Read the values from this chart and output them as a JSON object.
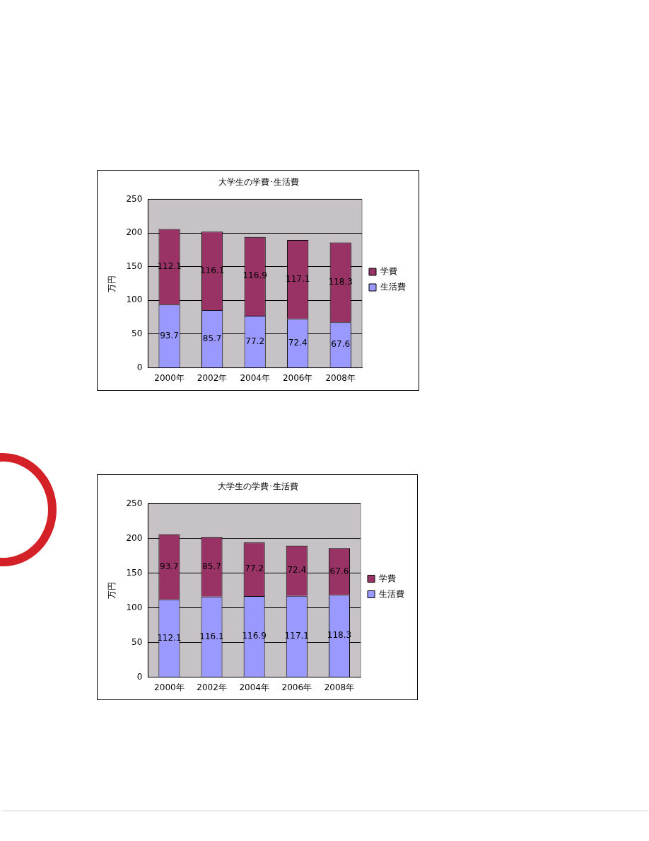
{
  "chart_data": [
    {
      "type": "bar",
      "title": "大学生の学費･生活費",
      "ylabel": "万円",
      "categories": [
        "2000年",
        "2002年",
        "2004年",
        "2006年",
        "2008年"
      ],
      "stacked": true,
      "series": [
        {
          "name": "生活費",
          "color": "#9999ff",
          "values": [
            93.7,
            85.7,
            77.2,
            72.4,
            67.6
          ],
          "value_labels": [
            "93.7",
            "85.7",
            "77.2",
            "72.4",
            "67.6"
          ]
        },
        {
          "name": "学費",
          "color": "#993366",
          "values": [
            112.1,
            116.1,
            116.9,
            117.1,
            118.3
          ],
          "value_labels": [
            "112.1",
            "116.1",
            "116.9",
            "117.1",
            "118.3"
          ]
        }
      ],
      "ylim": [
        0,
        250
      ],
      "yticks": [
        0,
        50,
        100,
        150,
        200,
        250
      ],
      "grid": "y",
      "legend": "right"
    },
    {
      "type": "bar",
      "title": "大学生の学費･生活費",
      "ylabel": "万円",
      "categories": [
        "2000年",
        "2002年",
        "2004年",
        "2006年",
        "2008年"
      ],
      "stacked": true,
      "series": [
        {
          "name": "生活費",
          "color": "#9999ff",
          "values": [
            112.1,
            116.1,
            116.9,
            117.1,
            118.3
          ],
          "value_labels": [
            "112.1",
            "116.1",
            "116.9",
            "117.1",
            "118.3"
          ]
        },
        {
          "name": "学費",
          "color": "#993366",
          "values": [
            93.7,
            85.7,
            77.2,
            72.4,
            67.6
          ],
          "value_labels": [
            "93.7",
            "85.7",
            "77.2",
            "72.4",
            "67.6"
          ]
        }
      ],
      "ylim": [
        0,
        250
      ],
      "yticks": [
        0,
        50,
        100,
        150,
        200,
        250
      ],
      "grid": "y",
      "legend": "right"
    }
  ]
}
